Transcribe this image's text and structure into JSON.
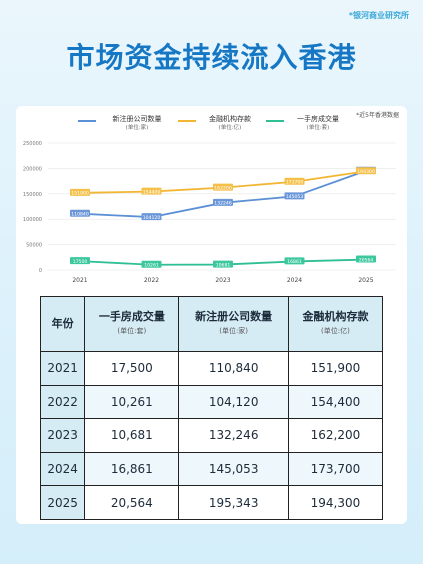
{
  "brand": "*银河商业研究所",
  "headline": "市场资金持续流入香港",
  "note": "*近5年香港数据",
  "chart_data": {
    "type": "line",
    "categories": [
      "2021",
      "2022",
      "2023",
      "2024",
      "2025"
    ],
    "ylim": [
      0,
      250000
    ],
    "yticks": [
      0,
      50000,
      100000,
      150000,
      200000,
      250000
    ],
    "ytick_labels": [
      "0",
      "50000",
      "100000",
      "150000",
      "200000",
      "250000"
    ],
    "grid": true,
    "legend_position": "top",
    "series": [
      {
        "name": "新注册公司数量",
        "unit": "(单位:家)",
        "color": "#5b8fd6",
        "label_bg": "#6b97d9",
        "values": [
          110840,
          104120,
          132246,
          145053,
          195343
        ],
        "labels": [
          "110840",
          "104120",
          "132246",
          "145053",
          "195343"
        ]
      },
      {
        "name": "金融机构存款",
        "unit": "(单位:亿)",
        "color": "#f2b632",
        "label_bg": "#f4c04a",
        "values": [
          151900,
          154400,
          162200,
          173700,
          194300
        ],
        "labels": [
          "151900",
          "154400",
          "162200",
          "173700",
          "194300"
        ]
      },
      {
        "name": "一手房成交量",
        "unit": "(单位:套)",
        "color": "#2fbf94",
        "label_bg": "#3cc79c",
        "values": [
          17500,
          10261,
          10681,
          16861,
          20564
        ],
        "labels": [
          "17500",
          "10261",
          "10681",
          "16861",
          "20564"
        ]
      }
    ]
  },
  "table": {
    "headers": [
      {
        "title": "年份",
        "sub": ""
      },
      {
        "title": "一手房成交量",
        "sub": "(单位:套)"
      },
      {
        "title": "新注册公司数量",
        "sub": "(单位:家)"
      },
      {
        "title": "金融机构存款",
        "sub": "(单位:亿)"
      }
    ],
    "rows": [
      [
        "2021",
        "17,500",
        "110,840",
        "151,900"
      ],
      [
        "2022",
        "10,261",
        "104,120",
        "154,400"
      ],
      [
        "2023",
        "10,681",
        "132,246",
        "162,200"
      ],
      [
        "2024",
        "16,861",
        "145,053",
        "173,700"
      ],
      [
        "2025",
        "20,564",
        "195,343",
        "194,300"
      ]
    ]
  }
}
